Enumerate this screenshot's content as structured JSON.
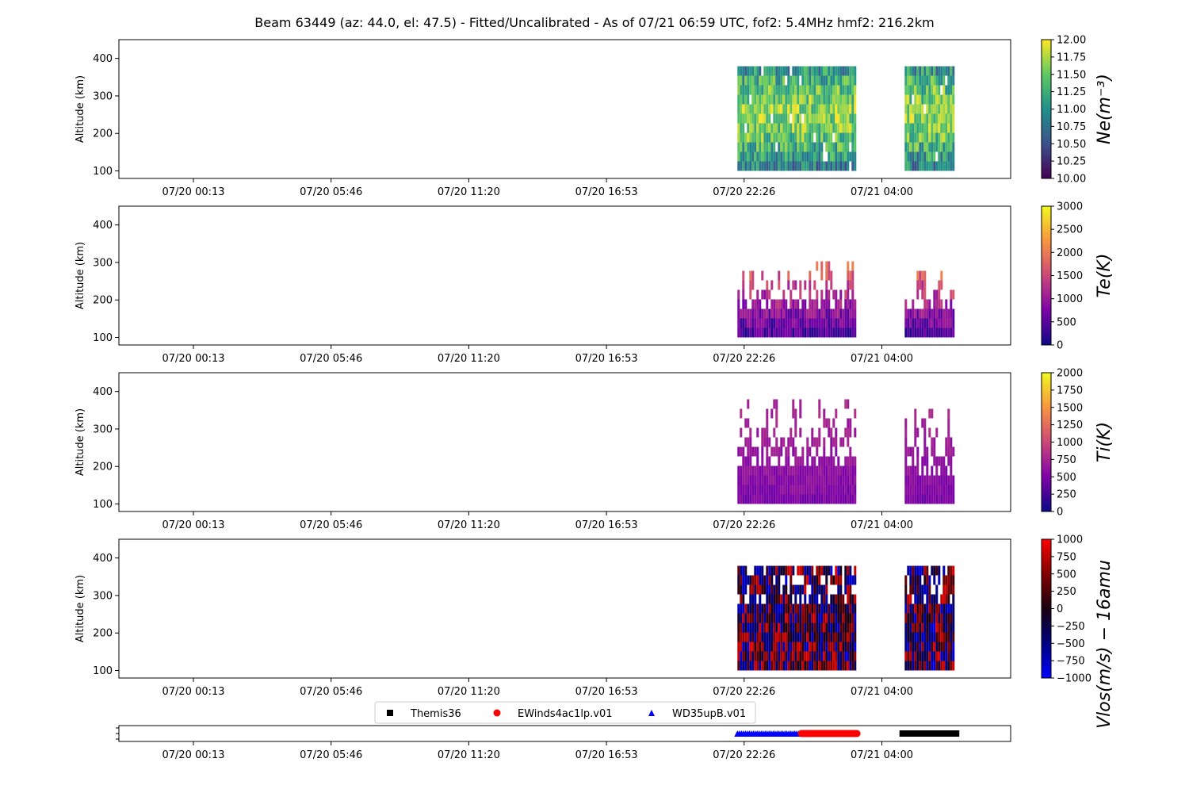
{
  "title": "Beam 63449 (az: 44.0, el: 47.5) - Fitted/Uncalibrated - As of 07/21 06:59 UTC, fof2: 5.4MHz  hmf2: 216.2km",
  "time_tick_labels": [
    "07/20 00:13",
    "07/20 05:46",
    "07/20 11:20",
    "07/20 16:53",
    "07/20 22:26",
    "07/21 04:00"
  ],
  "altitude_ticks": [
    "100",
    "200",
    "300",
    "400"
  ],
  "colors": {
    "axis": "#000000",
    "viridis": [
      "#440154",
      "#3b528b",
      "#21918c",
      "#5ec962",
      "#fde725"
    ],
    "plasma": [
      "#0d0887",
      "#7e03a8",
      "#cc4778",
      "#f89540",
      "#f0f921"
    ],
    "bwr_dark": [
      "#0000ff",
      "#000080",
      "#1a0010",
      "#800000",
      "#ff0000"
    ],
    "themis": "#000000",
    "ewinds": "#ff0000",
    "wd35": "#0000ff"
  },
  "chart_data": [
    {
      "type": "heatmap",
      "panel": "Ne",
      "ylabel": "Altitude (km)",
      "ylim": [
        80,
        450
      ],
      "yticks": [
        100,
        200,
        300,
        400
      ],
      "x_ticks": [
        "07/20 00:13",
        "07/20 05:46",
        "07/20 11:20",
        "07/20 16:53",
        "07/20 22:26",
        "07/21 04:00"
      ],
      "colorbar": {
        "label": "Ne(m⁻³)",
        "range": [
          10.0,
          12.0
        ],
        "ticks": [
          "10.00",
          "10.25",
          "10.50",
          "10.75",
          "11.00",
          "11.25",
          "11.50",
          "11.75",
          "12.00"
        ],
        "colormap": "viridis"
      },
      "data_blocks": [
        {
          "start": "07/20 22:10",
          "end": "07/21 02:55",
          "alt_range": [
            100,
            375
          ]
        },
        {
          "start": "07/21 04:55",
          "end": "07/21 06:55",
          "alt_range": [
            100,
            375
          ]
        }
      ]
    },
    {
      "type": "heatmap",
      "panel": "Te",
      "ylabel": "Altitude (km)",
      "ylim": [
        80,
        450
      ],
      "yticks": [
        100,
        200,
        300,
        400
      ],
      "x_ticks": [
        "07/20 00:13",
        "07/20 05:46",
        "07/20 11:20",
        "07/20 16:53",
        "07/20 22:26",
        "07/21 04:00"
      ],
      "colorbar": {
        "label": "Te(K)",
        "range": [
          0,
          3000
        ],
        "ticks": [
          "0",
          "500",
          "1000",
          "1500",
          "2000",
          "2500",
          "3000"
        ],
        "colormap": "plasma"
      },
      "data_blocks": [
        {
          "start": "07/20 22:10",
          "end": "07/21 02:55",
          "alt_range": [
            100,
            300
          ]
        },
        {
          "start": "07/21 04:55",
          "end": "07/21 06:55",
          "alt_range": [
            100,
            280
          ]
        }
      ]
    },
    {
      "type": "heatmap",
      "panel": "Ti",
      "ylabel": "Altitude (km)",
      "ylim": [
        80,
        450
      ],
      "yticks": [
        100,
        200,
        300,
        400
      ],
      "x_ticks": [
        "07/20 00:13",
        "07/20 05:46",
        "07/20 11:20",
        "07/20 16:53",
        "07/20 22:26",
        "07/21 04:00"
      ],
      "colorbar": {
        "label": "Ti(K)",
        "range": [
          0,
          2000
        ],
        "ticks": [
          "0",
          "250",
          "500",
          "750",
          "1000",
          "1250",
          "1500",
          "1750",
          "2000"
        ],
        "colormap": "plasma"
      },
      "data_blocks": [
        {
          "start": "07/20 22:10",
          "end": "07/21 02:55",
          "alt_range": [
            100,
            375
          ]
        },
        {
          "start": "07/21 04:55",
          "end": "07/21 06:55",
          "alt_range": [
            100,
            350
          ]
        }
      ]
    },
    {
      "type": "heatmap",
      "panel": "Vlos",
      "ylabel": "Altitude (km)",
      "ylim": [
        80,
        450
      ],
      "yticks": [
        100,
        200,
        300,
        400
      ],
      "x_ticks": [
        "07/20 00:13",
        "07/20 05:46",
        "07/20 11:20",
        "07/20 16:53",
        "07/20 22:26",
        "07/21 04:00"
      ],
      "colorbar": {
        "label": "Vlos(m/s) − 16amu",
        "range": [
          -1000,
          1000
        ],
        "ticks": [
          "−1000",
          "−750",
          "−500",
          "−250",
          "0",
          "250",
          "500",
          "750",
          "1000"
        ],
        "colormap": "bwr"
      },
      "data_blocks": [
        {
          "start": "07/20 22:10",
          "end": "07/21 02:55",
          "alt_range": [
            100,
            375
          ]
        },
        {
          "start": "07/21 04:55",
          "end": "07/21 06:55",
          "alt_range": [
            100,
            375
          ]
        }
      ]
    },
    {
      "type": "scatter",
      "panel": "experiment-modes",
      "x_ticks": [
        "07/20 00:13",
        "07/20 05:46",
        "07/20 11:20",
        "07/20 16:53",
        "07/20 22:26",
        "07/21 04:00"
      ],
      "legend": [
        "Themis36",
        "EWinds4ac1lp.v01",
        "WD35upB.v01"
      ],
      "series": [
        {
          "name": "WD35upB.v01",
          "marker": "triangle",
          "start": "07/20 22:10",
          "end": "07/21 00:45"
        },
        {
          "name": "EWinds4ac1lp.v01",
          "marker": "circle",
          "start": "07/21 00:45",
          "end": "07/21 03:00"
        },
        {
          "name": "Themis36",
          "marker": "square",
          "start": "07/21 04:50",
          "end": "07/21 07:00"
        }
      ]
    }
  ]
}
